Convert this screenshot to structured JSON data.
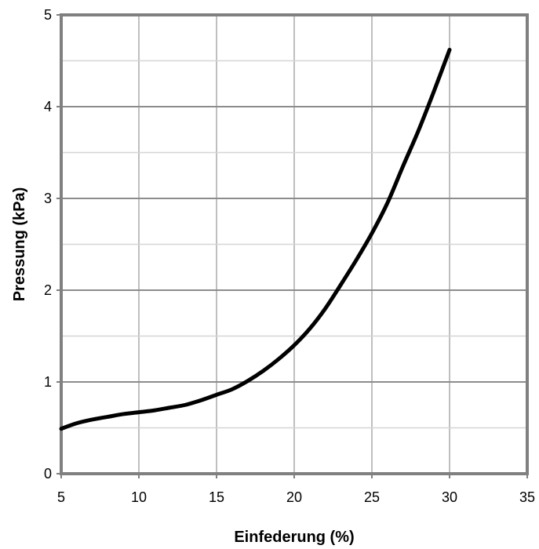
{
  "chart_data": {
    "type": "line",
    "title": "",
    "xlabel": "Einfederung (%)",
    "ylabel": "Pressung (kPa)",
    "xlim": [
      5,
      35
    ],
    "ylim": [
      0,
      5
    ],
    "x_ticks": [
      5,
      10,
      15,
      20,
      25,
      30,
      35
    ],
    "y_ticks": [
      0,
      1,
      2,
      3,
      4,
      5
    ],
    "x_tick_labels": [
      "5",
      "10",
      "15",
      "20",
      "25",
      "30",
      "35"
    ],
    "y_tick_labels": [
      "0",
      "1",
      "2",
      "3",
      "4",
      "5"
    ],
    "y_minor_gridlines": [
      0.5,
      1.5,
      2.5,
      3.5,
      4.5
    ],
    "grid": true,
    "series": [
      {
        "color": "#000000",
        "x": [
          5,
          6,
          7,
          8,
          9,
          10,
          11,
          12,
          13,
          14,
          15,
          16,
          17,
          18,
          19,
          20,
          21,
          22,
          23,
          24,
          25,
          26,
          27,
          28,
          29,
          30
        ],
        "y": [
          0.49,
          0.55,
          0.59,
          0.62,
          0.65,
          0.67,
          0.69,
          0.72,
          0.75,
          0.8,
          0.86,
          0.92,
          1.01,
          1.12,
          1.25,
          1.4,
          1.58,
          1.8,
          2.06,
          2.33,
          2.62,
          2.95,
          3.35,
          3.74,
          4.17,
          4.62
        ]
      }
    ]
  }
}
